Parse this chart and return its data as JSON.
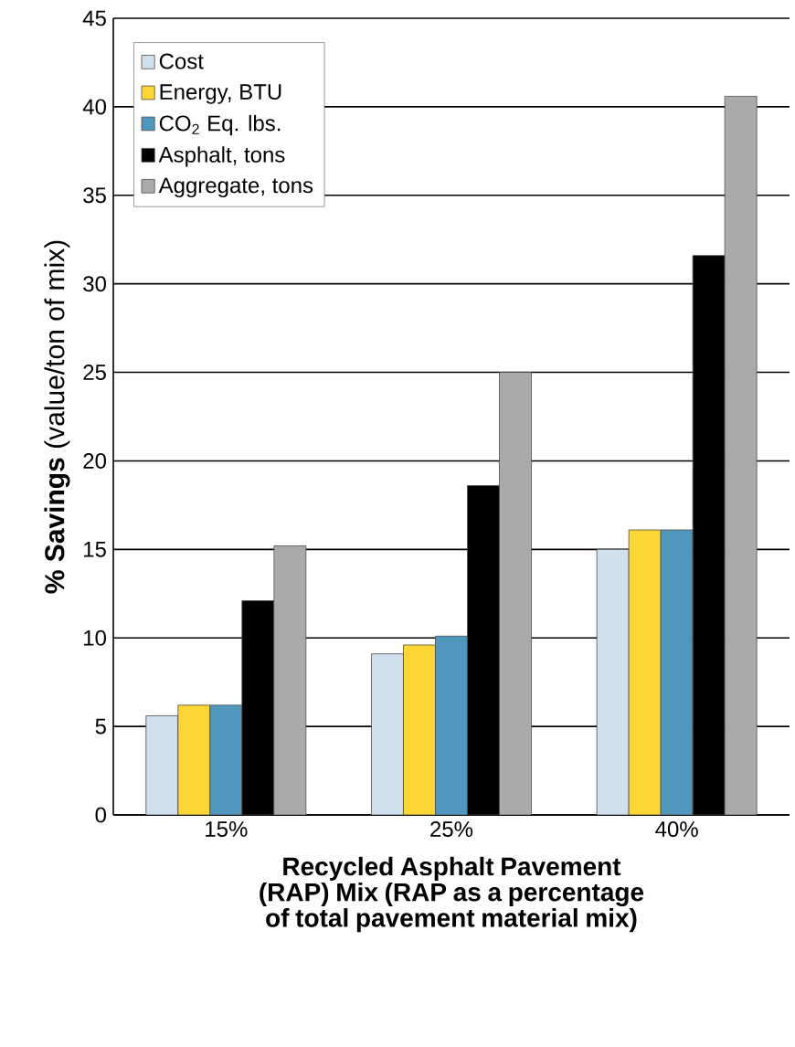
{
  "chart_data": {
    "type": "bar",
    "categories": [
      "15%",
      "25%",
      "40%"
    ],
    "series": [
      {
        "name": "Cost",
        "color": "#cfdfeb",
        "values": [
          5.6,
          9.1,
          15
        ]
      },
      {
        "name": "Energy, BTU",
        "color": "#fdd535",
        "values": [
          6.2,
          9.6,
          16.1
        ]
      },
      {
        "name": "CO$_{2}$ Eq. lbs.",
        "color": "#4f97bd",
        "values": [
          6.2,
          10.1,
          16.1
        ]
      },
      {
        "name": "Asphalt, tons",
        "color": "#000000",
        "values": [
          12.1,
          18.6,
          31.6
        ]
      },
      {
        "name": "Aggregate, tons",
        "color": "#aaaaaa",
        "values": [
          15.2,
          25,
          40.6
        ]
      }
    ],
    "ylabel": "**% Savings** (value/ton of mix)",
    "xlabel": "Recycled Asphalt Pavement (RAP) Mix (RAP as a percentage of total pavement material mix)",
    "ylim": [
      0,
      45
    ],
    "yticks": [
      0,
      5,
      10,
      15,
      20,
      25,
      30,
      35,
      40,
      45
    ],
    "grid": "y",
    "legend": "top left"
  }
}
